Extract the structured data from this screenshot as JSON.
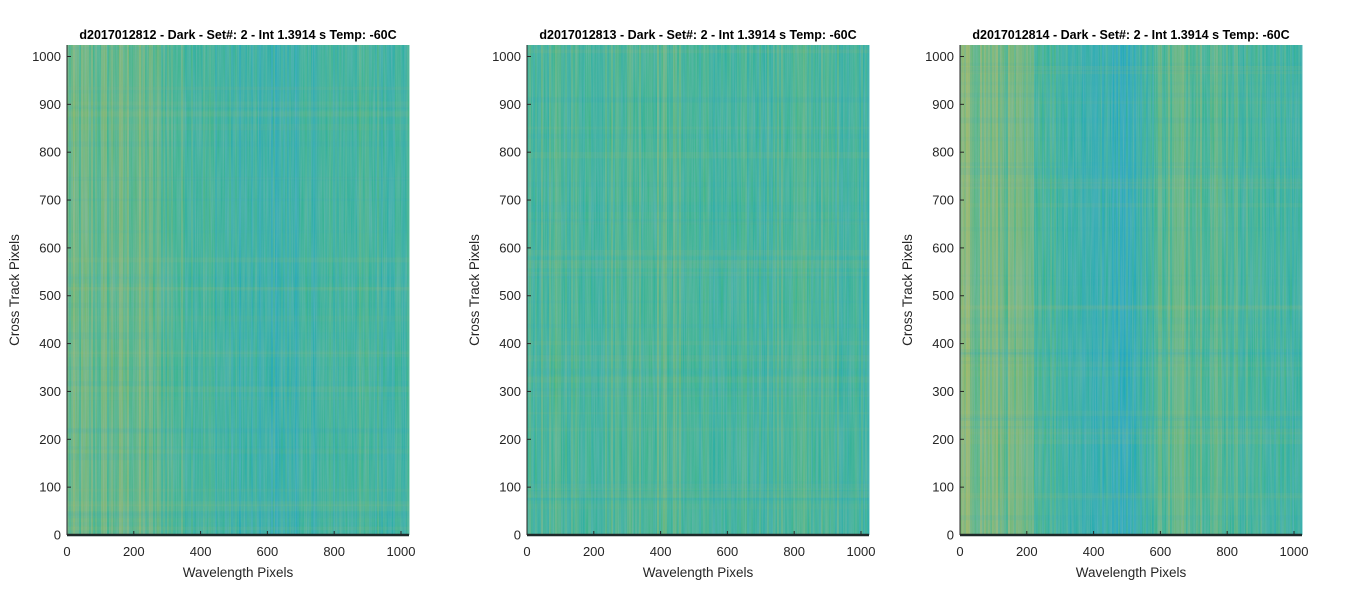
{
  "figure": {
    "colors": {
      "low": "#1aa6c8",
      "mid": "#3cb58e",
      "high": "#c2bc58",
      "axis_line": "#262626",
      "baseline": "#1e2a2a"
    }
  },
  "chart_data": [
    {
      "type": "heatmap",
      "title": "d2017012812 - Dark - Set#: 2 - Int 1.3914 s Temp: -60C",
      "xlabel": "Wavelength Pixels",
      "ylabel": "Cross Track Pixels",
      "xlim": [
        0,
        1024
      ],
      "ylim": [
        0,
        1024
      ],
      "xticks": [
        0,
        200,
        400,
        600,
        800,
        1000
      ],
      "yticks": [
        0,
        100,
        200,
        300,
        400,
        500,
        600,
        700,
        800,
        900,
        1000
      ],
      "xtick_labels": [
        "0",
        "200",
        "400",
        "600",
        "800",
        "1000"
      ],
      "ytick_labels": [
        "0",
        "100",
        "200",
        "300",
        "400",
        "500",
        "600",
        "700",
        "800",
        "900",
        "1000"
      ],
      "colormap": "parula",
      "column_profile": {
        "x": [
          0,
          100,
          200,
          300,
          400,
          500,
          600,
          700,
          800,
          900,
          1024
        ],
        "level": [
          0.62,
          0.62,
          0.64,
          0.54,
          0.46,
          0.35,
          0.28,
          0.33,
          0.42,
          0.44,
          0.38
        ]
      }
    },
    {
      "type": "heatmap",
      "title": "d2017012813 - Dark - Set#: 2 - Int 1.3914 s Temp: -60C",
      "xlabel": "Wavelength Pixels",
      "ylabel": "Cross Track Pixels",
      "xlim": [
        0,
        1024
      ],
      "ylim": [
        0,
        1024
      ],
      "xticks": [
        0,
        200,
        400,
        600,
        800,
        1000
      ],
      "yticks": [
        0,
        100,
        200,
        300,
        400,
        500,
        600,
        700,
        800,
        900,
        1000
      ],
      "xtick_labels": [
        "0",
        "200",
        "400",
        "600",
        "800",
        "1000"
      ],
      "ytick_labels": [
        "0",
        "100",
        "200",
        "300",
        "400",
        "500",
        "600",
        "700",
        "800",
        "900",
        "1000"
      ],
      "colormap": "parula",
      "column_profile": {
        "x": [
          0,
          100,
          200,
          300,
          400,
          500,
          600,
          700,
          800,
          900,
          1024
        ],
        "level": [
          0.46,
          0.48,
          0.47,
          0.52,
          0.55,
          0.46,
          0.38,
          0.44,
          0.5,
          0.46,
          0.42
        ]
      }
    },
    {
      "type": "heatmap",
      "title": "d2017012814 - Dark - Set#: 2 - Int 1.3914 s Temp: -60C",
      "xlabel": "Wavelength Pixels",
      "ylabel": "Cross Track Pixels",
      "xlim": [
        0,
        1024
      ],
      "ylim": [
        0,
        1024
      ],
      "xticks": [
        0,
        200,
        400,
        600,
        800,
        1000
      ],
      "yticks": [
        0,
        100,
        200,
        300,
        400,
        500,
        600,
        700,
        800,
        900,
        1000
      ],
      "xtick_labels": [
        "0",
        "200",
        "400",
        "600",
        "800",
        "1000"
      ],
      "ytick_labels": [
        "0",
        "100",
        "200",
        "300",
        "400",
        "500",
        "600",
        "700",
        "800",
        "900",
        "1000"
      ],
      "colormap": "parula",
      "column_profile": {
        "x": [
          0,
          100,
          200,
          300,
          400,
          500,
          540,
          600,
          700,
          800,
          900,
          1024
        ],
        "level": [
          0.74,
          0.7,
          0.6,
          0.4,
          0.25,
          0.22,
          0.3,
          0.58,
          0.62,
          0.52,
          0.42,
          0.36
        ]
      }
    }
  ]
}
